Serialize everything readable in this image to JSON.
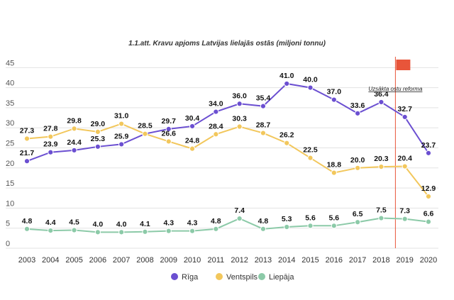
{
  "chart_data": {
    "type": "line",
    "title": "1.1.att. Kravu apjoms Latvijas lielajās ostās (miljoni tonnu)",
    "xlabel": "",
    "ylabel": "",
    "x": [
      "2003",
      "2004",
      "2005",
      "2006",
      "2007",
      "2008",
      "2009",
      "2010",
      "2011",
      "2012",
      "2013",
      "2014",
      "2015",
      "2016",
      "2017",
      "2018",
      "2019",
      "2020"
    ],
    "yticks": [
      "0",
      "5",
      "10",
      "15",
      "20",
      "25",
      "30",
      "35",
      "40",
      "45"
    ],
    "ylim": [
      0,
      47
    ],
    "grid": "horizontal",
    "legend_position": "bottom",
    "series": [
      {
        "name": "Rīga",
        "color": "#6b4fd1",
        "values": [
          21.7,
          23.9,
          24.4,
          25.3,
          25.9,
          28.5,
          29.7,
          30.4,
          34.0,
          36.0,
          35.4,
          41.0,
          40.0,
          37.0,
          33.6,
          36.4,
          32.7,
          23.7
        ],
        "labels": [
          "21.7",
          "23.9",
          "24.4",
          "25.3",
          "25.9",
          "28.5",
          "29.7",
          "30.4",
          "34.0",
          "36.0",
          "35.4",
          "41.0",
          "40.0",
          "37.0",
          "33.6",
          "36.4",
          "32.7",
          "23.7"
        ]
      },
      {
        "name": "Ventspils",
        "color": "#f2c75c",
        "values": [
          27.3,
          27.8,
          29.8,
          29.0,
          31.0,
          28.5,
          26.6,
          24.8,
          28.4,
          30.3,
          28.7,
          26.2,
          22.5,
          18.8,
          20.0,
          20.3,
          20.4,
          12.9
        ],
        "labels": [
          "27.3",
          "27.8",
          "29.8",
          "29.0",
          "31.0",
          "",
          "26.6",
          "24.8",
          "28.4",
          "30.3",
          "28.7",
          "26.2",
          "22.5",
          "18.8",
          "20.0",
          "20.3",
          "20.4",
          "12.9"
        ]
      },
      {
        "name": "Liepāja",
        "color": "#8ccaa8",
        "values": [
          4.8,
          4.4,
          4.5,
          4.0,
          4.0,
          4.1,
          4.3,
          4.3,
          4.8,
          7.4,
          4.8,
          5.3,
          5.6,
          5.6,
          6.5,
          7.5,
          7.3,
          6.6
        ],
        "labels": [
          "4.8",
          "4.4",
          "4.5",
          "4.0",
          "4.0",
          "4.1",
          "4.3",
          "4.3",
          "4.8",
          "7.4",
          "4.8",
          "5.3",
          "5.6",
          "5.6",
          "6.5",
          "7.5",
          "7.3",
          "6.6"
        ]
      }
    ],
    "annotations": [
      {
        "text": "Uzsākta ostu reforma",
        "x": 2018.3,
        "color": "#e8553a"
      }
    ]
  }
}
